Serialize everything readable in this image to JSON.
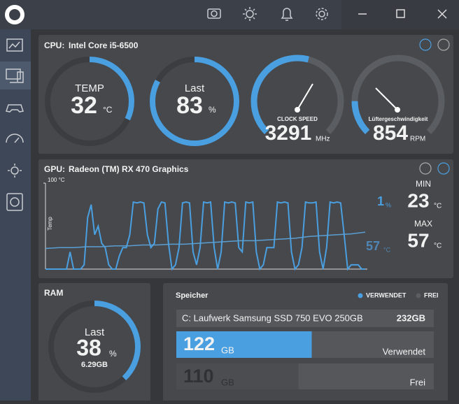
{
  "cpu": {
    "label": "CPU:",
    "model": "Intel Core i5-6500",
    "temp": {
      "title": "TEMP",
      "value": 32,
      "unit": "°C"
    },
    "load": {
      "title": "Last",
      "value": 83,
      "unit": "%"
    },
    "clock": {
      "title": "CLOCK SPEED",
      "value": 3291,
      "unit": "MHz"
    },
    "fan": {
      "title": "Lüftergeschwindigkeit",
      "value": 854,
      "unit": "RPM"
    }
  },
  "gpu": {
    "label": "GPU:",
    "model": "Radeon (TM) RX 470 Graphics",
    "chart": {
      "ylim": [
        0,
        100
      ],
      "yticks": [
        {
          "value": 100,
          "label": "100 °C"
        }
      ],
      "ylabel": "Temp",
      "series": [
        {
          "color": "#4a9fe0",
          "values": [
            0,
            0,
            0,
            0,
            0,
            0,
            0,
            20,
            0,
            0,
            0,
            5,
            60,
            75,
            40,
            50,
            30,
            25,
            5,
            0,
            0,
            15,
            25,
            25,
            40,
            78,
            77,
            78,
            77,
            40,
            25,
            30,
            70,
            78,
            77,
            30,
            0,
            5,
            25,
            77,
            78,
            77,
            20,
            5,
            25,
            78,
            77,
            78,
            25,
            0,
            20,
            78,
            77,
            78,
            77,
            25,
            20,
            78,
            77,
            78,
            20,
            0,
            5,
            25,
            25,
            25,
            78,
            77,
            78,
            77,
            20,
            0,
            5,
            25,
            78,
            77,
            77,
            78,
            20,
            0,
            25,
            78,
            77,
            78,
            77,
            40,
            0,
            5,
            5,
            5,
            0,
            0
          ]
        },
        {
          "color": "#5a9fd4",
          "values": [
            24,
            25,
            25,
            26,
            26,
            27,
            27,
            28,
            28,
            29,
            29,
            30,
            31,
            32,
            33,
            33,
            34,
            35,
            36,
            38,
            39,
            40,
            41,
            43
          ]
        }
      ]
    },
    "current_load": {
      "value": 1,
      "unit": "%"
    },
    "current_temp": {
      "value": 57,
      "unit": "°C"
    },
    "min": {
      "label": "MIN",
      "value": 23,
      "unit": "°C"
    },
    "max": {
      "label": "MAX",
      "value": 57,
      "unit": "°C"
    }
  },
  "ram": {
    "label": "RAM",
    "title": "Last",
    "value": 38,
    "unit": "%",
    "used": "6.29GB"
  },
  "storage": {
    "title": "Speicher",
    "legend": [
      {
        "label": "VERWENDET",
        "color": "#4a9fe0"
      },
      {
        "label": "FREI",
        "color": "#5a5d62"
      }
    ],
    "drive": {
      "name": "C: Laufwerk Samsung SSD 750 EVO 250GB",
      "total": {
        "value": 232,
        "label": "232GB"
      },
      "used": {
        "value": 122,
        "unit": "GB",
        "label": "Verwendet"
      },
      "free": {
        "value": 110,
        "unit": "GB",
        "label": "Frei"
      }
    }
  }
}
